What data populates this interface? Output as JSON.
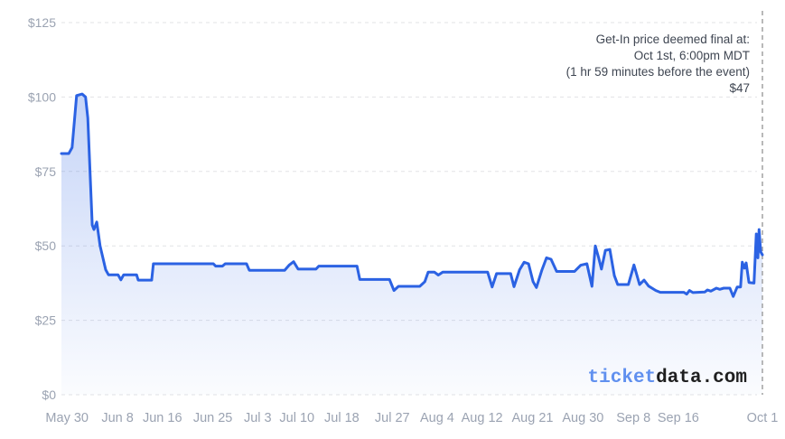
{
  "annotation": {
    "lines": [
      "Get-In price deemed final at:",
      "Oct 1st, 6:00pm MDT",
      "(1 hr 59 minutes before the event)",
      "$47"
    ]
  },
  "watermark": {
    "primary": "ticket",
    "secondary": "data.com"
  },
  "colors": {
    "line": "#2b62e3",
    "fill": "#2b62e3",
    "grid": "#e2e3e6",
    "event_line": "#9b9b9b",
    "axis_text": "#9ba3b2",
    "annotation_text": "#3f4652",
    "watermark_primary": "#6090ef",
    "watermark_secondary": "#1f1f1f"
  },
  "chart_data": {
    "type": "area",
    "title": "",
    "xlabel": "",
    "ylabel": "",
    "legend": "none",
    "grid": "horizontal dashed",
    "x_unit": "days since May 29",
    "x_domain": [
      0,
      125
    ],
    "ylim": [
      0,
      125
    ],
    "y_ticks": [
      {
        "value": 0,
        "label": "$0"
      },
      {
        "value": 25,
        "label": "$25"
      },
      {
        "value": 50,
        "label": "$50"
      },
      {
        "value": 75,
        "label": "$75"
      },
      {
        "value": 100,
        "label": "$100"
      },
      {
        "value": 125,
        "label": "$125"
      }
    ],
    "x_ticks": [
      {
        "day": 1,
        "label": "May 30"
      },
      {
        "day": 10,
        "label": "Jun 8"
      },
      {
        "day": 18,
        "label": "Jun 16"
      },
      {
        "day": 27,
        "label": "Jun 25"
      },
      {
        "day": 35,
        "label": "Jul 3"
      },
      {
        "day": 42,
        "label": "Jul 10"
      },
      {
        "day": 50,
        "label": "Jul 18"
      },
      {
        "day": 59,
        "label": "Jul 27"
      },
      {
        "day": 67,
        "label": "Aug 4"
      },
      {
        "day": 75,
        "label": "Aug 12"
      },
      {
        "day": 84,
        "label": "Aug 21"
      },
      {
        "day": 93,
        "label": "Aug 30"
      },
      {
        "day": 102,
        "label": "Sep 8"
      },
      {
        "day": 110,
        "label": "Sep 16"
      },
      {
        "day": 125,
        "label": "Oct 1"
      }
    ],
    "event_line_day": 125,
    "final_price": 47,
    "series": [
      {
        "name": "Get-In price ($)",
        "points": [
          [
            0,
            81
          ],
          [
            1.3,
            81
          ],
          [
            1.9,
            83
          ],
          [
            2.7,
            100.5
          ],
          [
            3.7,
            101
          ],
          [
            4.3,
            100
          ],
          [
            4.7,
            93
          ],
          [
            5.5,
            57
          ],
          [
            5.8,
            55.5
          ],
          [
            6.3,
            58
          ],
          [
            6.9,
            50
          ],
          [
            7.9,
            42
          ],
          [
            8.4,
            40.3
          ],
          [
            10.1,
            40.3
          ],
          [
            10.6,
            38.6
          ],
          [
            11.1,
            40.3
          ],
          [
            13.4,
            40.3
          ],
          [
            13.7,
            38.5
          ],
          [
            16.1,
            38.5
          ],
          [
            16.4,
            44
          ],
          [
            27.1,
            44
          ],
          [
            27.5,
            43.2
          ],
          [
            28.7,
            43.2
          ],
          [
            29.2,
            44
          ],
          [
            33,
            44
          ],
          [
            33.5,
            41.8
          ],
          [
            39.8,
            41.8
          ],
          [
            40.6,
            43.5
          ],
          [
            41.4,
            44.7
          ],
          [
            42.2,
            42.2
          ],
          [
            45.4,
            42.2
          ],
          [
            45.9,
            43.2
          ],
          [
            52.7,
            43.2
          ],
          [
            53.2,
            38.7
          ],
          [
            58.5,
            38.7
          ],
          [
            59.3,
            35
          ],
          [
            60.1,
            36.4
          ],
          [
            63.9,
            36.4
          ],
          [
            64.8,
            38
          ],
          [
            65.4,
            41.2
          ],
          [
            66.5,
            41.2
          ],
          [
            67.2,
            40.2
          ],
          [
            68,
            41.2
          ],
          [
            76,
            41.2
          ],
          [
            76.8,
            36.2
          ],
          [
            77.6,
            40.7
          ],
          [
            80.1,
            40.7
          ],
          [
            80.7,
            36.3
          ],
          [
            81.7,
            42
          ],
          [
            82.5,
            44.5
          ],
          [
            83.3,
            44
          ],
          [
            84.1,
            38
          ],
          [
            84.7,
            36
          ],
          [
            85.7,
            42
          ],
          [
            86.5,
            46
          ],
          [
            87.3,
            45.5
          ],
          [
            88.3,
            41.4
          ],
          [
            91.5,
            41.4
          ],
          [
            92.6,
            43.5
          ],
          [
            93.7,
            44
          ],
          [
            94.6,
            36.4
          ],
          [
            95.2,
            50
          ],
          [
            95.8,
            46
          ],
          [
            96.3,
            42.2
          ],
          [
            97,
            48.5
          ],
          [
            97.8,
            48.8
          ],
          [
            98.6,
            40
          ],
          [
            99.2,
            37
          ],
          [
            101.1,
            37
          ],
          [
            102.1,
            43.6
          ],
          [
            103.1,
            37
          ],
          [
            103.9,
            38.5
          ],
          [
            104.7,
            36.5
          ],
          [
            106,
            35
          ],
          [
            106.8,
            34.4
          ],
          [
            111,
            34.4
          ],
          [
            111.5,
            33.8
          ],
          [
            112,
            35
          ],
          [
            112.6,
            34.3
          ],
          [
            114.7,
            34.5
          ],
          [
            115.2,
            35.2
          ],
          [
            115.8,
            34.8
          ],
          [
            116.8,
            35.8
          ],
          [
            117.4,
            35.4
          ],
          [
            118.1,
            35.8
          ],
          [
            119.2,
            35.8
          ],
          [
            119.8,
            33
          ],
          [
            120.5,
            36.2
          ],
          [
            121.1,
            36.2
          ],
          [
            121.4,
            44.5
          ],
          [
            121.8,
            42.5
          ],
          [
            122.1,
            44.3
          ],
          [
            122.6,
            37.7
          ],
          [
            123.5,
            37.5
          ],
          [
            123.9,
            54
          ],
          [
            124.2,
            46
          ],
          [
            124.4,
            55.5
          ],
          [
            124.7,
            48
          ],
          [
            125,
            47
          ]
        ]
      }
    ]
  }
}
